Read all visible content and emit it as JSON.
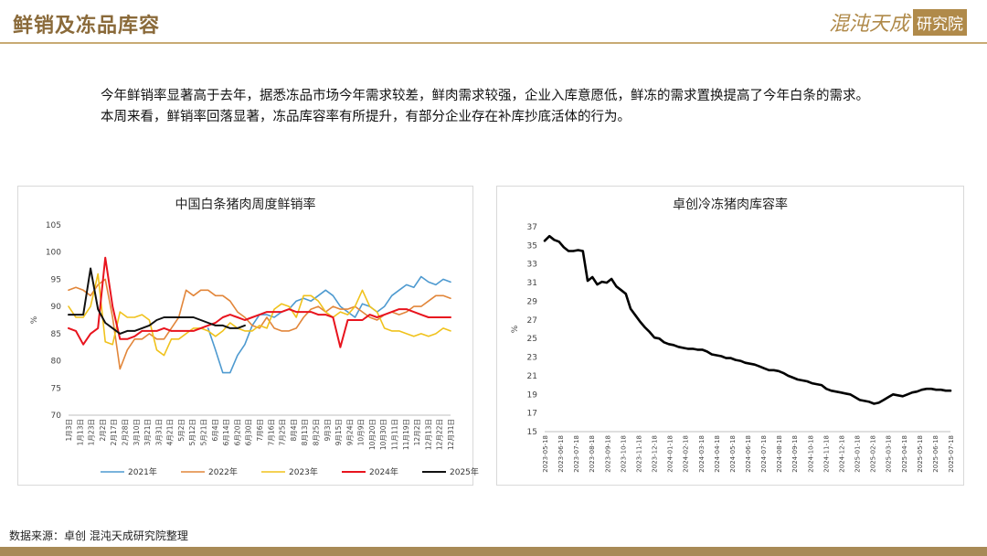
{
  "header": {
    "title": "鲜销及冻品库容",
    "logo_text": "混沌天成",
    "logo_box_text": "研究院"
  },
  "body": {
    "paragraph1": "今年鲜销率显著高于去年，据悉冻品市场今年需求较差，鲜肉需求较强，企业入库意愿低，鲜冻的需求置换提高了今年白条的需求。",
    "paragraph2": "本周来看，鲜销率回落显著，冻品库容率有所提升，有部分企业存在补库抄底活体的行为。"
  },
  "footer": {
    "source": "数据来源：卓创  混沌天成研究院整理"
  },
  "colors": {
    "brand_gold": "#a88a56",
    "title_gold": "#8a6a3a"
  },
  "chart_data": [
    {
      "type": "line",
      "title": "中国白条猪肉周度鲜销率",
      "ylabel": "%",
      "ylim": [
        70,
        105
      ],
      "yticks": [
        70,
        75,
        80,
        85,
        90,
        95,
        100,
        105
      ],
      "xticks": [
        "1月3日",
        "1月13日",
        "1月23日",
        "2月2日",
        "2月17日",
        "2月28日",
        "3月10日",
        "3月21日",
        "3月31日",
        "4月21日",
        "5月2日",
        "5月12日",
        "5月21日",
        "6月4日",
        "6月14日",
        "6月20日",
        "6月30日",
        "7月6日",
        "7月16日",
        "7月25日",
        "8月4日",
        "8月13日",
        "8月25日",
        "9月3日",
        "9月15日",
        "9月24日",
        "10月9日",
        "10月20日",
        "10月30日",
        "11月11日",
        "11月19日",
        "12月2日",
        "12月13日",
        "12月22日",
        "12月31日"
      ],
      "legend_position": "bottom",
      "series": [
        {
          "name": "2021年",
          "color": "#4e9ad0",
          "values": [
            null,
            null,
            null,
            null,
            null,
            null,
            null,
            null,
            null,
            null,
            null,
            null,
            null,
            null,
            null,
            null,
            null,
            null,
            null,
            86,
            82,
            77.8,
            77.8,
            81,
            83,
            86.5,
            88.5,
            88.5,
            88,
            89,
            89.5,
            91,
            91.5,
            91,
            92,
            93,
            92,
            90,
            89,
            88,
            90.5,
            90,
            89,
            90,
            92,
            93,
            94,
            93.5,
            95.5,
            94.5,
            94,
            95,
            94.5
          ]
        },
        {
          "name": "2022年",
          "color": "#e2863a",
          "values": [
            93,
            93.5,
            93,
            92,
            94,
            95,
            88,
            78.5,
            82,
            84,
            84,
            85,
            84,
            84,
            86,
            88,
            93,
            92,
            93,
            93,
            92,
            92,
            91,
            89,
            88,
            86.5,
            86,
            88,
            86,
            85.5,
            85.5,
            86,
            88,
            89.5,
            90,
            89,
            90,
            89.5,
            89.5,
            90,
            89,
            88,
            87.5,
            88.5,
            89,
            88.5,
            89,
            90,
            90,
            91,
            92,
            92,
            91.5
          ]
        },
        {
          "name": "2023年",
          "color": "#f0c21c",
          "values": [
            90,
            88,
            88,
            90,
            96,
            83.5,
            83,
            89,
            88,
            88,
            88.5,
            87.5,
            82,
            81,
            84,
            84,
            85,
            86,
            86,
            85.5,
            84.5,
            85.5,
            87,
            86,
            85.5,
            85.5,
            86.5,
            86,
            89.5,
            90.5,
            90,
            88,
            92,
            92,
            91,
            89,
            88,
            89,
            88.5,
            90,
            93,
            90,
            89,
            86,
            85.5,
            85.5,
            85,
            84.5,
            85,
            84.5,
            85,
            86,
            85.5
          ]
        },
        {
          "name": "2024年",
          "color": "#e8141e",
          "values": [
            86,
            85.5,
            83,
            85,
            86,
            99,
            90,
            84,
            84,
            84.5,
            85.5,
            85.5,
            85.5,
            86,
            85.5,
            85.5,
            85.5,
            85.5,
            86,
            86.5,
            87,
            88,
            88.5,
            88,
            87.5,
            88,
            88.5,
            89,
            89,
            89,
            89.5,
            89,
            89,
            89,
            88.5,
            88.5,
            88,
            82.5,
            87.5,
            87.5,
            87.5,
            88.5,
            88,
            88.5,
            89,
            89.5,
            89.5,
            89,
            88.5,
            88,
            88,
            88,
            88
          ]
        },
        {
          "name": "2025年",
          "color": "#111111",
          "values": [
            88.5,
            88.5,
            88.5,
            97,
            89.5,
            87,
            86,
            85,
            85.5,
            85.5,
            86,
            86.5,
            87.5,
            88,
            88,
            88,
            88,
            88,
            87.5,
            87,
            86.5,
            86.5,
            86,
            86,
            86.5,
            null,
            null,
            null,
            null,
            null,
            null,
            null,
            null,
            null,
            null,
            null,
            null,
            null,
            null,
            null,
            null,
            null,
            null,
            null,
            null,
            null,
            null,
            null,
            null,
            null,
            null,
            null,
            null
          ]
        }
      ]
    },
    {
      "type": "line",
      "title": "卓创冷冻猪肉库容率",
      "ylabel": "%",
      "ylim": [
        15,
        37
      ],
      "yticks": [
        15,
        17,
        19,
        21,
        23,
        25,
        27,
        29,
        31,
        33,
        35,
        37
      ],
      "xticks": [
        "2023-05-18",
        "2023-06-18",
        "2023-07-18",
        "2023-08-18",
        "2023-09-18",
        "2023-10-18",
        "2023-11-18",
        "2023-12-18",
        "2024-01-18",
        "2024-02-18",
        "2024-03-18",
        "2024-04-18",
        "2024-05-18",
        "2024-06-18",
        "2024-07-18",
        "2024-08-18",
        "2024-09-18",
        "2024-10-18",
        "2024-11-18",
        "2024-12-18",
        "2025-01-18",
        "2025-02-18",
        "2025-03-18",
        "2025-04-18",
        "2025-05-18",
        "2025-06-18",
        "2025-07-18"
      ],
      "series": [
        {
          "name": "",
          "color": "#000000",
          "values": [
            35.5,
            36,
            35.6,
            35.4,
            34.8,
            34.4,
            34.4,
            34.5,
            34.4,
            31.2,
            31.6,
            30.8,
            31.1,
            31.0,
            31.4,
            30.6,
            30.2,
            29.8,
            28.2,
            27.5,
            26.8,
            26.2,
            25.7,
            25.1,
            25.0,
            24.6,
            24.4,
            24.3,
            24.1,
            24.0,
            23.9,
            23.9,
            23.8,
            23.8,
            23.6,
            23.3,
            23.2,
            23.1,
            22.9,
            22.9,
            22.7,
            22.6,
            22.4,
            22.3,
            22.2,
            22.0,
            21.8,
            21.6,
            21.6,
            21.5,
            21.3,
            21.0,
            20.8,
            20.6,
            20.5,
            20.4,
            20.2,
            20.1,
            20.0,
            19.6,
            19.4,
            19.3,
            19.2,
            19.1,
            19.0,
            18.7,
            18.4,
            18.3,
            18.2,
            18.0,
            18.1,
            18.4,
            18.7,
            19.0,
            18.9,
            18.8,
            19.0,
            19.2,
            19.3,
            19.5,
            19.6,
            19.6,
            19.5,
            19.5,
            19.4,
            19.4
          ]
        }
      ]
    }
  ]
}
